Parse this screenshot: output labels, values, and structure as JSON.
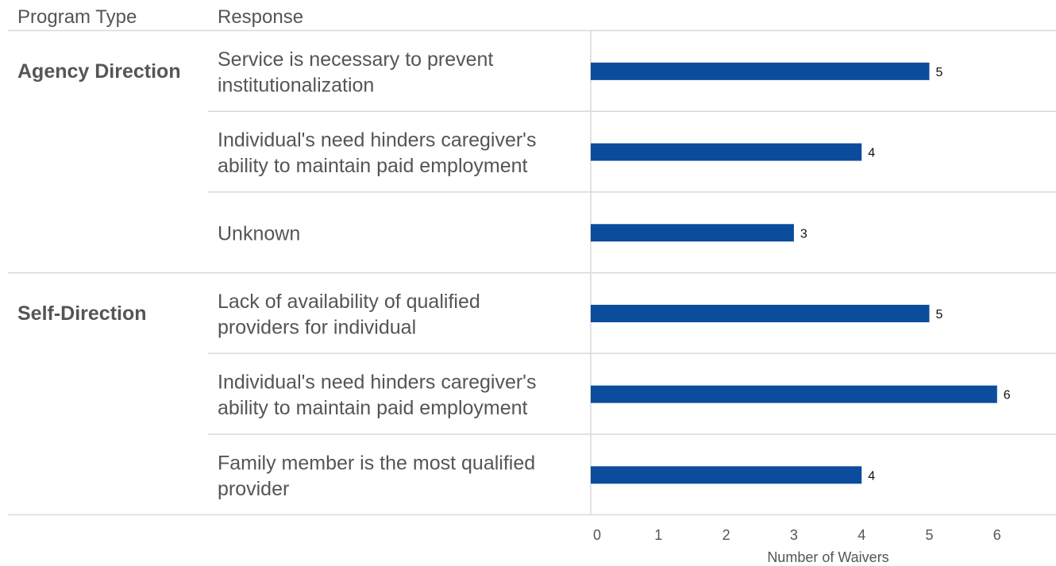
{
  "chart_data": {
    "type": "bar",
    "orientation": "horizontal",
    "column_headers": {
      "group": "Program Type",
      "response": "Response"
    },
    "xlabel": "Number of Waivers",
    "xlim": [
      0,
      6.8
    ],
    "xticks": [
      0,
      1,
      2,
      3,
      4,
      5,
      6
    ],
    "bar_color": "#0b4c9c",
    "groups": [
      {
        "name": "Agency Direction",
        "rows": [
          {
            "label": [
              "Service is necessary to prevent",
              "institutionalization"
            ],
            "value": 5
          },
          {
            "label": [
              "Individual's need hinders caregiver's",
              "ability to maintain paid employment"
            ],
            "value": 4
          },
          {
            "label": [
              "Unknown"
            ],
            "value": 3
          }
        ]
      },
      {
        "name": "Self-Direction",
        "rows": [
          {
            "label": [
              "Lack of availability of qualified",
              "providers for individual"
            ],
            "value": 5
          },
          {
            "label": [
              "Individual's need hinders caregiver's",
              "ability to maintain paid employment"
            ],
            "value": 6
          },
          {
            "label": [
              "Family member is the most qualified",
              "provider"
            ],
            "value": 4
          }
        ]
      }
    ]
  }
}
